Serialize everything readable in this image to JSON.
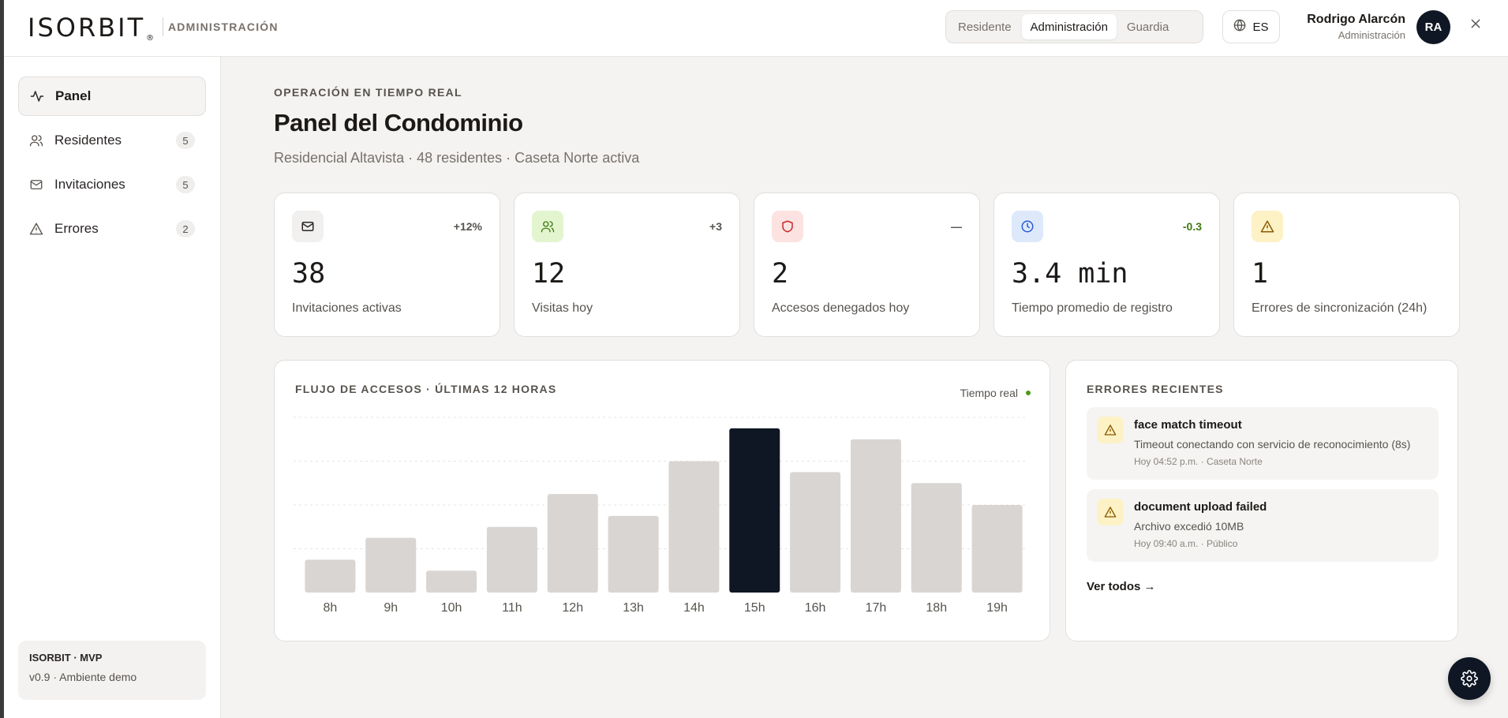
{
  "header": {
    "logo": "ISORBIT",
    "logo_mark": "®",
    "section": "ADMINISTRACIÓN",
    "roles": [
      {
        "label": "Residente",
        "active": false
      },
      {
        "label": "Administración",
        "active": true
      },
      {
        "label": "Guardia",
        "active": false
      }
    ],
    "language": "ES",
    "language_icon": "globe-icon",
    "user": {
      "name": "Rodrigo Alarcón",
      "role": "Administración",
      "initials": "RA"
    },
    "close_icon": "close-icon"
  },
  "sidebar": {
    "items": [
      {
        "label": "Panel",
        "icon": "activity-icon",
        "count": null,
        "active": true
      },
      {
        "label": "Residentes",
        "icon": "users-icon",
        "count": "5",
        "active": false
      },
      {
        "label": "Invitaciones",
        "icon": "mail-icon",
        "count": "5",
        "active": false
      },
      {
        "label": "Errores",
        "icon": "warning-icon",
        "count": "2",
        "active": false
      }
    ],
    "footer": {
      "title": "ISORBIT · MVP",
      "subtitle": "v0.9 · Ambiente demo"
    }
  },
  "main": {
    "eyebrow": "OPERACIÓN EN TIEMPO REAL",
    "title": "Panel del Condominio",
    "subtitle": "Residencial Altavista · 48 residentes · Caseta Norte activa"
  },
  "stats": [
    {
      "value": "38",
      "label": "Invitaciones activas",
      "delta": "+12%",
      "icon": "mail-icon",
      "icon_bg": "#f1f0ee",
      "icon_color": "#292524",
      "delta_color": "#57534e"
    },
    {
      "value": "12",
      "label": "Visitas hoy",
      "delta": "+3",
      "icon": "users-icon",
      "icon_bg": "#e3f5cf",
      "icon_color": "#3f7a12",
      "delta_color": "#57534e"
    },
    {
      "value": "2",
      "label": "Accesos denegados hoy",
      "delta": "—",
      "icon": "shield-icon",
      "icon_bg": "#fde2e2",
      "icon_color": "#c62828",
      "delta_color": "#57534e"
    },
    {
      "value": "3.4 min",
      "label": "Tiempo promedio de registro",
      "delta": "-0.3",
      "icon": "clock-icon",
      "icon_bg": "#dde9fb",
      "icon_color": "#2a5bd7",
      "delta_color": "#3f7a12"
    },
    {
      "value": "1",
      "label": "Errores de sincronización (24h)",
      "delta": "",
      "icon": "warning-icon",
      "icon_bg": "#fdf2c6",
      "icon_color": "#8a5a00",
      "delta_color": "#57534e"
    }
  ],
  "chart": {
    "title": "FLUJO DE ACCESOS · ÚLTIMAS 12 HORAS",
    "live_label": "Tiempo real",
    "live_color": "#4d9a14"
  },
  "chart_data": {
    "type": "bar",
    "title": "FLUJO DE ACCESOS · ÚLTIMAS 12 HORAS",
    "categories": [
      "8h",
      "9h",
      "10h",
      "11h",
      "12h",
      "13h",
      "14h",
      "15h",
      "16h",
      "17h",
      "18h",
      "19h"
    ],
    "values": [
      6,
      10,
      4,
      12,
      18,
      14,
      24,
      30,
      22,
      28,
      20,
      16
    ],
    "ylim": [
      0,
      32
    ],
    "highlight": "15h",
    "bar_color": "#d8d5d2",
    "highlight_color": "#0f1724",
    "grid": true,
    "legend": "none"
  },
  "errors": {
    "title": "ERRORES RECIENTES",
    "items": [
      {
        "name": "face match timeout",
        "desc": "Timeout conectando con servicio de reconocimiento (8s)",
        "meta": "Hoy 04:52 p.m. · Caseta Norte",
        "icon": "warning-icon"
      },
      {
        "name": "document upload failed",
        "desc": "Archivo excedió 10MB",
        "meta": "Hoy 09:40 a.m. · Público",
        "icon": "warning-icon"
      }
    ],
    "see_all": "Ver todos →"
  },
  "fab_icon": "settings-icon"
}
